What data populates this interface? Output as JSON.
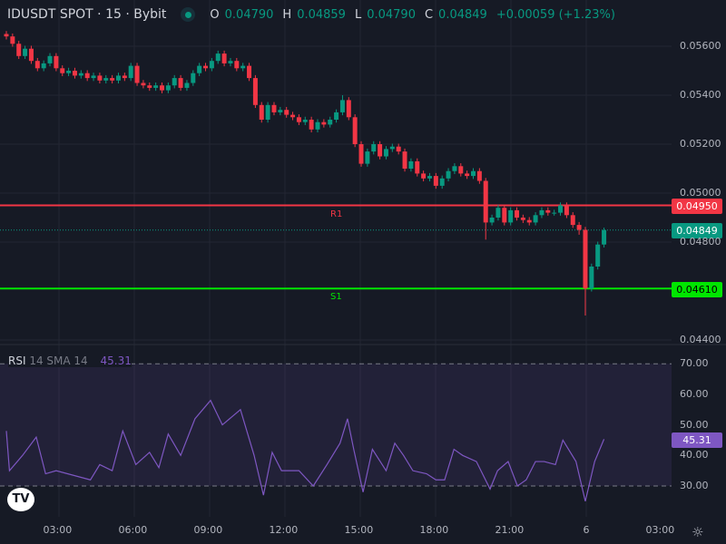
{
  "header": {
    "symbol": "IDUSDT SPOT · 15 · Bybit",
    "o_label": "O",
    "o": "0.04790",
    "h_label": "H",
    "h": "0.04859",
    "l_label": "L",
    "l": "0.04790",
    "c_label": "C",
    "c": "0.04849",
    "change": "+0.00059 (+1.23%)",
    "status_color": "#089981"
  },
  "price_axis": {
    "ticks": [
      "0.05600",
      "0.05400",
      "0.05200",
      "0.05000",
      "0.04800",
      "0.04400"
    ],
    "tick_values": [
      0.056,
      0.054,
      0.052,
      0.05,
      0.048,
      0.044
    ]
  },
  "levels": {
    "r1": {
      "label": "R1",
      "price": 0.0495,
      "price_text": "0.04950",
      "color": "#f23645"
    },
    "s1": {
      "label": "S1",
      "price": 0.0461,
      "price_text": "0.04610",
      "color": "#00e600"
    },
    "last": {
      "price": 0.04849,
      "price_text": "0.04849",
      "color": "#089981"
    }
  },
  "candles": {
    "note_open": "prev close",
    "first_open": 0.0565,
    "close": [
      0.0564,
      0.0561,
      0.0556,
      0.0559,
      0.0554,
      0.0551,
      0.0553,
      0.0556,
      0.0551,
      0.0549,
      0.055,
      0.0548,
      0.0549,
      0.0547,
      0.0548,
      0.0546,
      0.0547,
      0.0546,
      0.0548,
      0.0547,
      0.0552,
      0.0545,
      0.0544,
      0.0543,
      0.0544,
      0.0542,
      0.0544,
      0.0547,
      0.0543,
      0.0545,
      0.0549,
      0.0552,
      0.0551,
      0.0554,
      0.0557,
      0.0553,
      0.0554,
      0.0551,
      0.0552,
      0.0547,
      0.0536,
      0.053,
      0.0536,
      0.0533,
      0.0534,
      0.0532,
      0.0531,
      0.0529,
      0.053,
      0.0526,
      0.0529,
      0.0528,
      0.053,
      0.0533,
      0.0538,
      0.0531,
      0.052,
      0.0512,
      0.0517,
      0.052,
      0.0515,
      0.0518,
      0.0519,
      0.0517,
      0.051,
      0.0513,
      0.0508,
      0.0506,
      0.0507,
      0.0503,
      0.0506,
      0.0509,
      0.0511,
      0.0508,
      0.0507,
      0.0509,
      0.0505,
      0.0488,
      0.049,
      0.0494,
      0.0488,
      0.0493,
      0.049,
      0.0489,
      0.0488,
      0.0491,
      0.0493,
      0.0492,
      0.0492,
      0.0495,
      0.0491,
      0.0487,
      0.0485,
      0.0461,
      0.047,
      0.0479,
      0.04849
    ],
    "low_overrides": {
      "77": 0.0481,
      "93": 0.045,
      "92": 0.0483
    },
    "high_overrides": {
      "54": 0.054,
      "96": 0.04859
    }
  },
  "rsi": {
    "name": "RSI",
    "params": "14 SMA 14",
    "value": "45.31",
    "ticks": [
      "70.00",
      "60.00",
      "50.00",
      "40.00",
      "30.00"
    ],
    "upper": 70,
    "lower": 30,
    "color": "#7e57c2",
    "points": [
      [
        0,
        48
      ],
      [
        0.5,
        35
      ],
      [
        2.6,
        40
      ],
      [
        4.8,
        46
      ],
      [
        6.3,
        34
      ],
      [
        8,
        35
      ],
      [
        13.5,
        32
      ],
      [
        15,
        37
      ],
      [
        17,
        35
      ],
      [
        18.7,
        48
      ],
      [
        20.8,
        37
      ],
      [
        23,
        41
      ],
      [
        24.5,
        36
      ],
      [
        26,
        47
      ],
      [
        28,
        40
      ],
      [
        30.3,
        52
      ],
      [
        32.8,
        58
      ],
      [
        34.7,
        50
      ],
      [
        37.6,
        55
      ],
      [
        39.8,
        40
      ],
      [
        41.3,
        27
      ],
      [
        42.7,
        41
      ],
      [
        44.2,
        35
      ],
      [
        47,
        35
      ],
      [
        49.3,
        30
      ],
      [
        51.5,
        37
      ],
      [
        53.6,
        44
      ],
      [
        54.8,
        52
      ],
      [
        55.8,
        42
      ],
      [
        57.3,
        28
      ],
      [
        58.8,
        42
      ],
      [
        61,
        35
      ],
      [
        62.4,
        44
      ],
      [
        63.8,
        40
      ],
      [
        65.3,
        35
      ],
      [
        67.5,
        34
      ],
      [
        69,
        32
      ],
      [
        70.4,
        32
      ],
      [
        71.9,
        42
      ],
      [
        73.3,
        40
      ],
      [
        75.5,
        38
      ],
      [
        77.7,
        29
      ],
      [
        78.9,
        35
      ],
      [
        80.6,
        38
      ],
      [
        82.1,
        30
      ],
      [
        83.5,
        32
      ],
      [
        85,
        38
      ],
      [
        86.4,
        38
      ],
      [
        88.2,
        37
      ],
      [
        89.4,
        45
      ],
      [
        91.5,
        38
      ],
      [
        93,
        25
      ],
      [
        94.5,
        38
      ],
      [
        96,
        45.31
      ]
    ]
  },
  "time_axis": {
    "labels": [
      "03:00",
      "06:00",
      "09:00",
      "12:00",
      "15:00",
      "18:00",
      "21:00",
      "6",
      "03:00"
    ]
  },
  "colors": {
    "up": "#089981",
    "down": "#f23645",
    "bg": "#161a25",
    "grid": "#232632"
  }
}
